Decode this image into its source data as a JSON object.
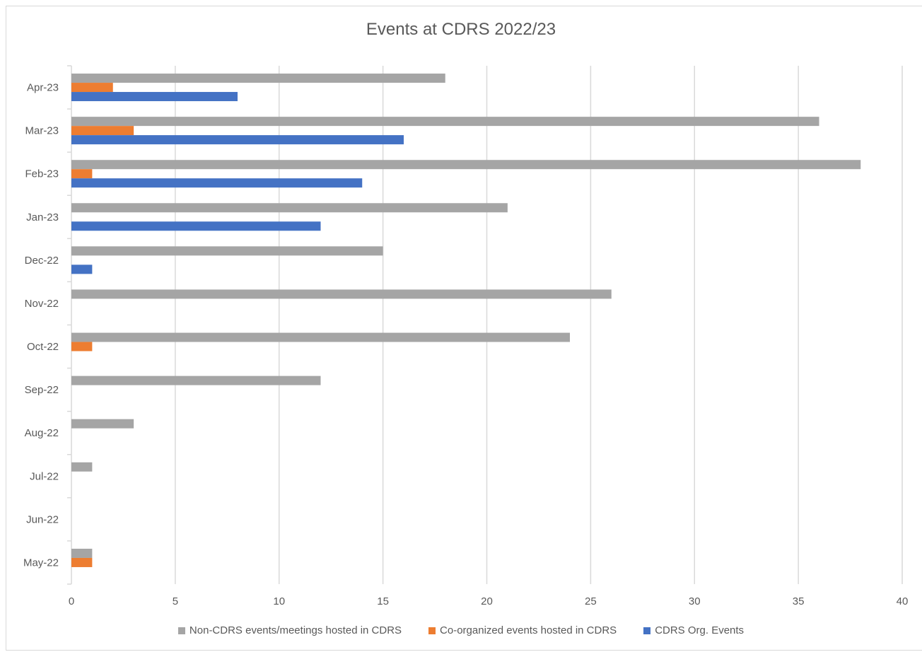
{
  "chart_data": {
    "type": "bar",
    "orientation": "horizontal",
    "title": "Events at CDRS 2022/23",
    "categories": [
      "May-22",
      "Jun-22",
      "Jul-22",
      "Aug-22",
      "Sep-22",
      "Oct-22",
      "Nov-22",
      "Dec-22",
      "Jan-23",
      "Feb-23",
      "Mar-23",
      "Apr-23"
    ],
    "series": [
      {
        "name": "Non-CDRS events/meetings hosted in CDRS",
        "color": "#a5a5a5",
        "values": [
          1,
          0,
          1,
          3,
          12,
          24,
          26,
          15,
          21,
          38,
          36,
          18
        ]
      },
      {
        "name": "Co-organized events hosted in CDRS",
        "color": "#ed7d31",
        "values": [
          1,
          0,
          0,
          0,
          0,
          1,
          0,
          0,
          0,
          1,
          3,
          2
        ]
      },
      {
        "name": "CDRS Org. Events",
        "color": "#4472c4",
        "values": [
          0,
          0,
          0,
          0,
          0,
          0,
          0,
          1,
          12,
          14,
          16,
          8
        ]
      }
    ],
    "xlim": [
      0,
      40
    ],
    "xticks": [
      "0",
      "5",
      "10",
      "15",
      "20",
      "25",
      "30",
      "35",
      "40"
    ],
    "grid": true,
    "legend_position": "bottom"
  }
}
